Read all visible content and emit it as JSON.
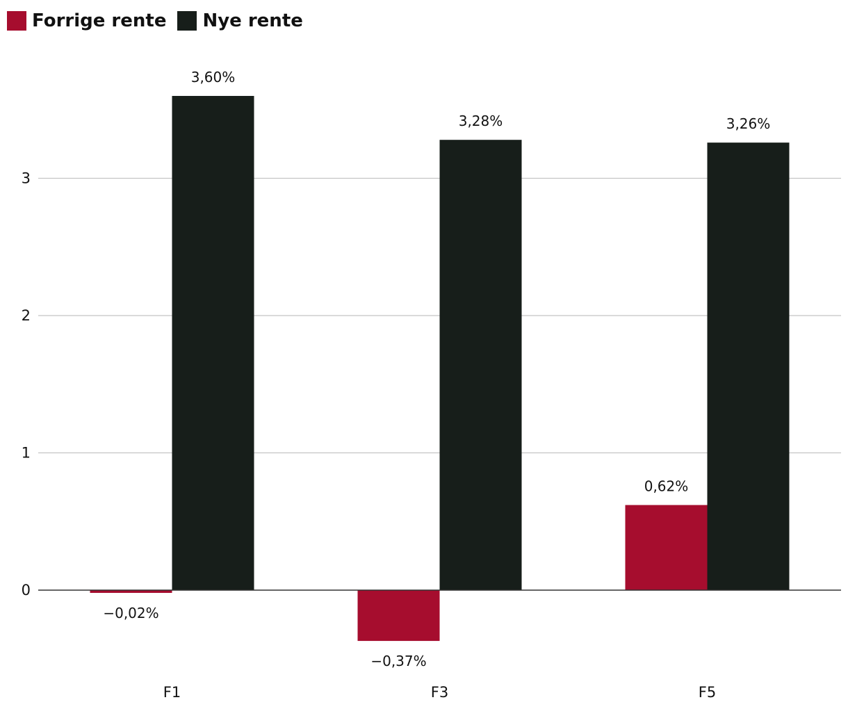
{
  "legend": {
    "items": [
      {
        "label": "Forrige rente",
        "color": "#a60d2e"
      },
      {
        "label": "Nye rente",
        "color": "#171e1a"
      }
    ]
  },
  "chart_data": {
    "type": "bar",
    "categories": [
      "F1",
      "F3",
      "F5"
    ],
    "series": [
      {
        "name": "Forrige rente",
        "color": "#a60d2e",
        "values": [
          -0.02,
          -0.37,
          0.62
        ],
        "labels": [
          "−0,02%",
          "−0,37%",
          "0,62%"
        ]
      },
      {
        "name": "Nye rente",
        "color": "#171e1a",
        "values": [
          3.6,
          3.28,
          3.26
        ],
        "labels": [
          "3,60%",
          "3,28%",
          "3,26%"
        ]
      }
    ],
    "yticks": [
      0,
      1,
      2,
      3
    ],
    "ylim": [
      -0.5,
      3.85
    ],
    "grid": true,
    "legend_position": "top-left",
    "title": "",
    "xlabel": "",
    "ylabel": ""
  }
}
